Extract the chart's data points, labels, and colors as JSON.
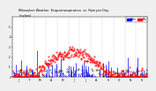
{
  "title": "Milwaukee Weather  Evapotranspiration  vs  Rain per Day",
  "title2": "(Inches)",
  "title_fontsize": 2.8,
  "background_color": "#f0f0f0",
  "plot_bg": "#ffffff",
  "legend_labels": [
    "Rain",
    "ETo"
  ],
  "legend_colors": [
    "#0000ff",
    "#ff0000"
  ],
  "ylim": [
    0,
    0.6
  ],
  "num_days": 365,
  "grid_color": "#aaaaaa",
  "month_ticks": [
    0,
    31,
    59,
    90,
    120,
    151,
    181,
    212,
    243,
    273,
    304,
    334,
    365
  ],
  "month_labels": [
    "J",
    "F",
    "M",
    "A",
    "M",
    "J",
    "J",
    "A",
    "S",
    "O",
    "N",
    "D"
  ],
  "eto_color": "#ff0000",
  "rain_color": "#0000ff",
  "black_color": "#000000",
  "marker_size": 0.8,
  "ytick_labels": [
    "0",
    ".1",
    ".2",
    ".3",
    ".4",
    ".5"
  ],
  "ytick_values": [
    0.0,
    0.1,
    0.2,
    0.3,
    0.4,
    0.5
  ]
}
